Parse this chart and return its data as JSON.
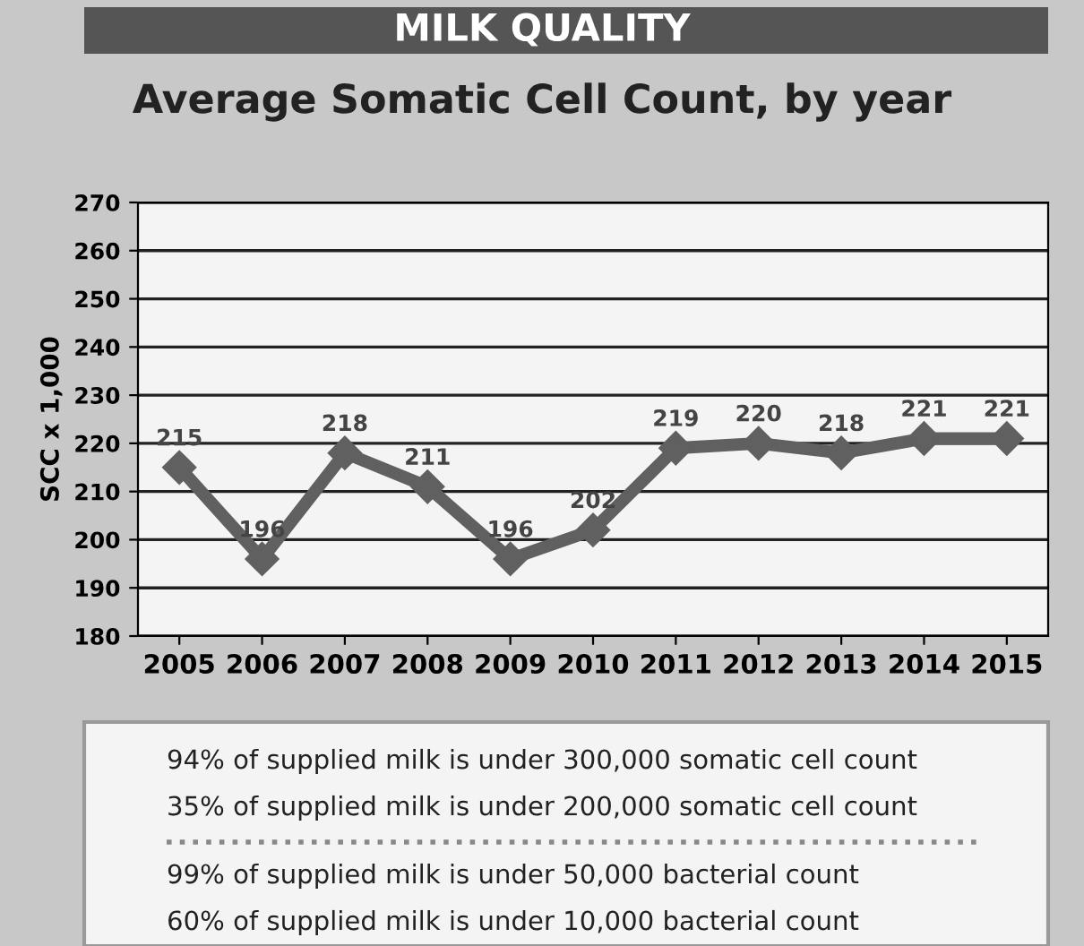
{
  "chart_data": {
    "type": "line",
    "title": "MILK QUALITY",
    "subtitle": "Average Somatic Cell Count, by year",
    "ylabel": "SCC x 1,000",
    "categories": [
      "2005",
      "2006",
      "2007",
      "2008",
      "2009",
      "2010",
      "2011",
      "2012",
      "2013",
      "2014",
      "2015"
    ],
    "series": [
      {
        "color": "#606060",
        "values": [
          215,
          196,
          218,
          211,
          196,
          202,
          219,
          220,
          218,
          221,
          221
        ]
      }
    ],
    "ylim": [
      180,
      270
    ],
    "yticks": [
      180,
      190,
      200,
      210,
      220,
      230,
      240,
      250,
      260,
      270
    ],
    "grid": "y",
    "marker": "diamond",
    "line_style": "solid",
    "data_labels": true,
    "legend": false,
    "annotations": [
      "94% of supplied milk is under 300,000 somatic cell count",
      "35% of supplied milk is under 200,000 somatic cell count",
      "99% of supplied milk is under 50,000 bacterial count",
      "60% of supplied milk is under 10,000 bacterial count"
    ]
  }
}
